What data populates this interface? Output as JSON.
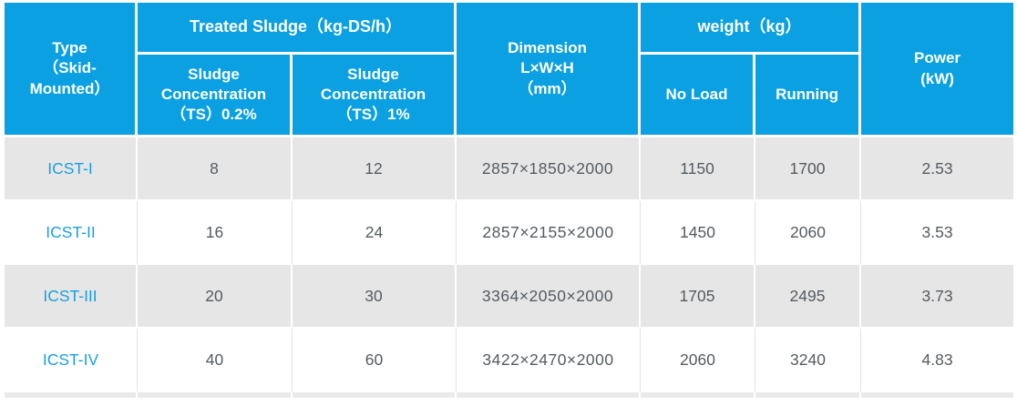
{
  "table": {
    "header": {
      "type": "Type\n（Skid-\nMounted）",
      "treated_sludge": "Treated Sludge（kg-DS/h）",
      "ts_02": "Sludge\nConcentration\n（TS）0.2%",
      "ts_1": "Sludge\nConcentration\n（TS）1%",
      "dimension": "Dimension\nL×W×H\n（mm）",
      "weight": "weight（kg）",
      "no_load": "No Load",
      "running": "Running",
      "power": "Power\n(kW)"
    },
    "rows": [
      {
        "type": "ICST-I",
        "ts_02": "8",
        "ts_1": "12",
        "dimension": "2857×1850×2000",
        "no_load": "1150",
        "running": "1700",
        "power": "2.53"
      },
      {
        "type": "ICST-II",
        "ts_02": "16",
        "ts_1": "24",
        "dimension": "2857×2155×2000",
        "no_load": "1450",
        "running": "2060",
        "power": "3.53"
      },
      {
        "type": "ICST-III",
        "ts_02": "20",
        "ts_1": "30",
        "dimension": "3364×2050×2000",
        "no_load": "1705",
        "running": "2495",
        "power": "3.73"
      },
      {
        "type": "ICST-IV",
        "ts_02": "40",
        "ts_1": "60",
        "dimension": "3422×2470×2000",
        "no_load": "2060",
        "running": "3240",
        "power": "4.83"
      }
    ],
    "colors": {
      "header_blue": "#0aa0e1",
      "row_gray": "#e6e6e6",
      "type_blue": "#189fe0",
      "body_text": "#555b61"
    }
  }
}
